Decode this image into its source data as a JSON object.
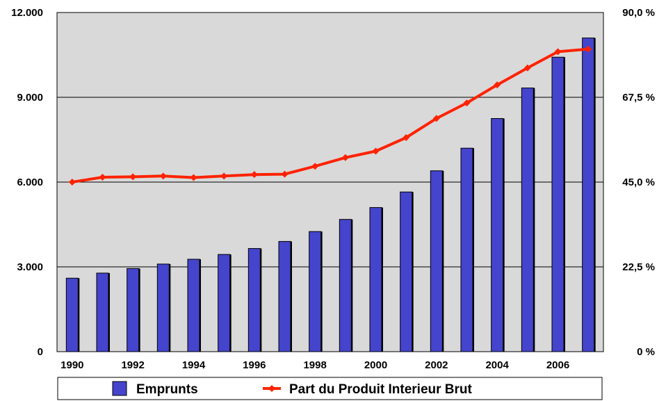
{
  "chart_data": {
    "type": "bar",
    "categories": [
      "1990",
      "1991",
      "1992",
      "1993",
      "1994",
      "1995",
      "1996",
      "1997",
      "1998",
      "1999",
      "2000",
      "2001",
      "2002",
      "2003",
      "2004",
      "2005",
      "2006",
      "2007"
    ],
    "x_tick_labels": [
      "1990",
      "1992",
      "1994",
      "1996",
      "1998",
      "2000",
      "2002",
      "2004",
      "2006"
    ],
    "series": [
      {
        "name": "Emprunts",
        "type": "bar",
        "axis": "left",
        "color": "#4444cc",
        "values": [
          2600,
          2780,
          2940,
          3100,
          3270,
          3440,
          3650,
          3900,
          4250,
          4680,
          5100,
          5650,
          6400,
          7200,
          8250,
          9330,
          10420,
          11100
        ]
      },
      {
        "name": "Part du Produit Interieur Brut",
        "type": "line",
        "axis": "right",
        "color": "#ff2200",
        "values": [
          45.0,
          46.3,
          46.4,
          46.6,
          46.2,
          46.6,
          47.0,
          47.1,
          49.2,
          51.5,
          53.2,
          56.8,
          61.9,
          66.0,
          70.8,
          75.3,
          79.6,
          80.3
        ]
      }
    ],
    "y_left": {
      "ylim": [
        0,
        12000
      ],
      "tick_values": [
        0,
        3000,
        6000,
        9000,
        12000
      ],
      "tick_labels": [
        "0",
        "3.000",
        "6.000",
        "9.000",
        "12.000"
      ]
    },
    "y_right": {
      "ylim": [
        0,
        90
      ],
      "tick_values": [
        0,
        22.5,
        45,
        67.5,
        90
      ],
      "tick_labels": [
        "0 %",
        "22,5 %",
        "45,0 %",
        "67,5 %",
        "90,0 %"
      ]
    },
    "grid": true,
    "legend_position": "bottom",
    "colors": {
      "plot_background": "#d9d9d9",
      "bar_fill": "#4444cc",
      "line": "#ff2200"
    }
  }
}
